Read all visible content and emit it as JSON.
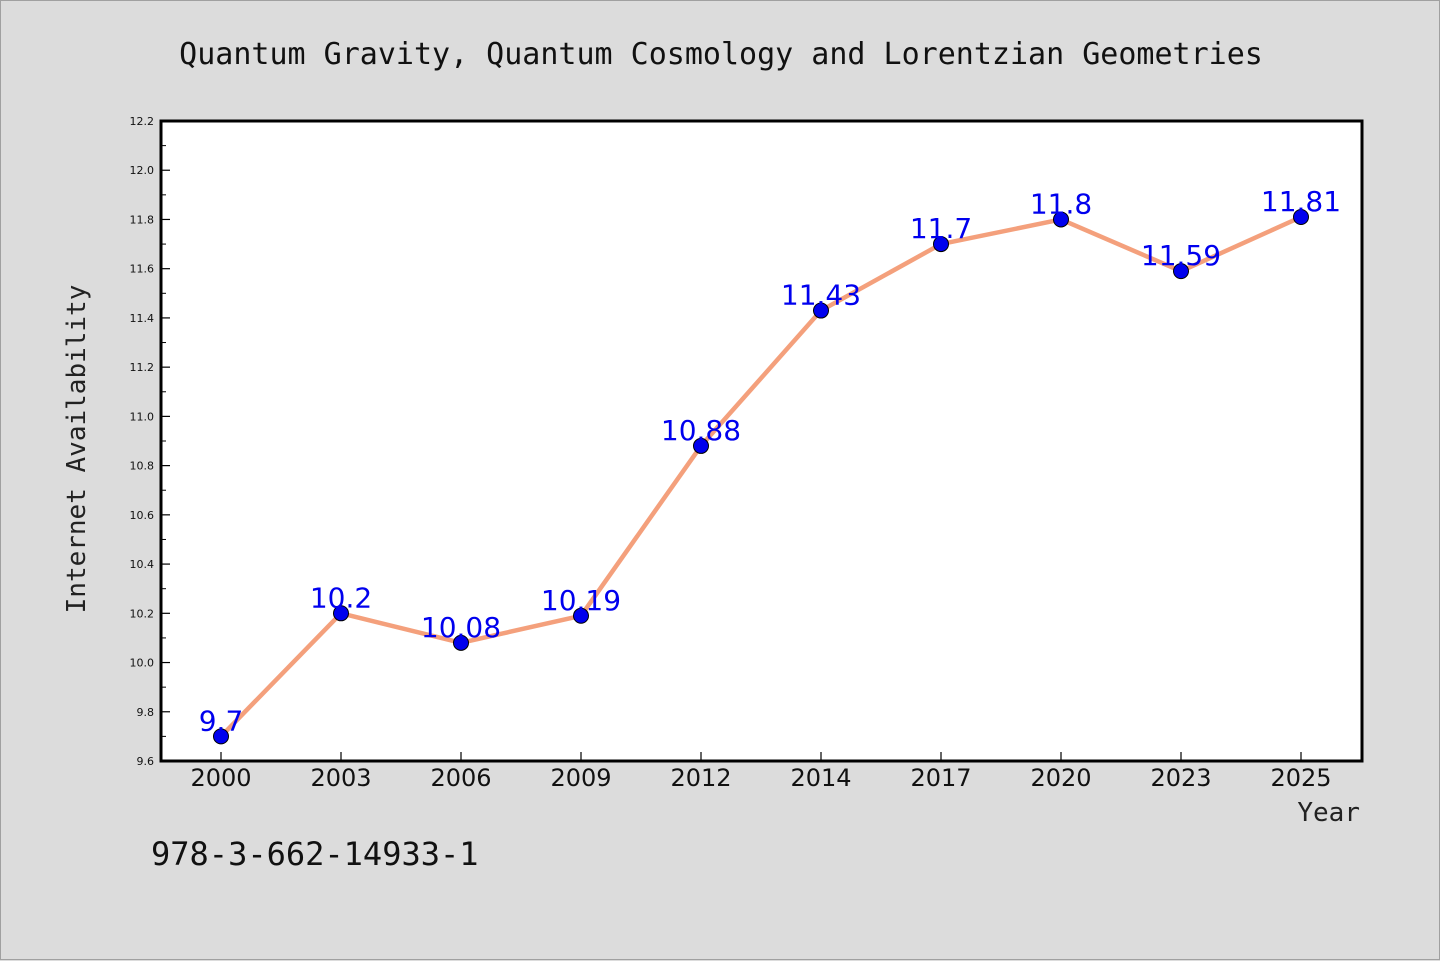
{
  "chart_data": {
    "type": "line",
    "title": "Quantum Gravity, Quantum Cosmology and Lorentzian Geometries",
    "xlabel": "Year",
    "ylabel": "Internet Availability",
    "categories": [
      "2000",
      "2003",
      "2006",
      "2009",
      "2012",
      "2014",
      "2017",
      "2020",
      "2023",
      "2025"
    ],
    "values": [
      9.7,
      10.2,
      10.08,
      10.19,
      10.88,
      11.43,
      11.7,
      11.8,
      11.59,
      11.81
    ],
    "data_labels": [
      "9.7",
      "10.2",
      "10.08",
      "10.19",
      "10.88",
      "11.43",
      "11.7",
      "11.8",
      "11.59",
      "11.81"
    ],
    "ylim": [
      9.6,
      12.2
    ],
    "yticks": [
      "9.6",
      "9.8",
      "10.0",
      "10.2",
      "10.4",
      "10.6",
      "10.8",
      "11.0",
      "11.2",
      "11.4",
      "11.6",
      "11.8",
      "12.0",
      "12.2"
    ],
    "grid": false,
    "legend": "none",
    "colors": {
      "line": "#f4a07c",
      "marker": "#0000ee",
      "data_label": "#0000ee",
      "plot_bg": "#ffffff",
      "page_bg": "#dcdcdc"
    }
  },
  "footnote": "978-3-662-14933-1"
}
